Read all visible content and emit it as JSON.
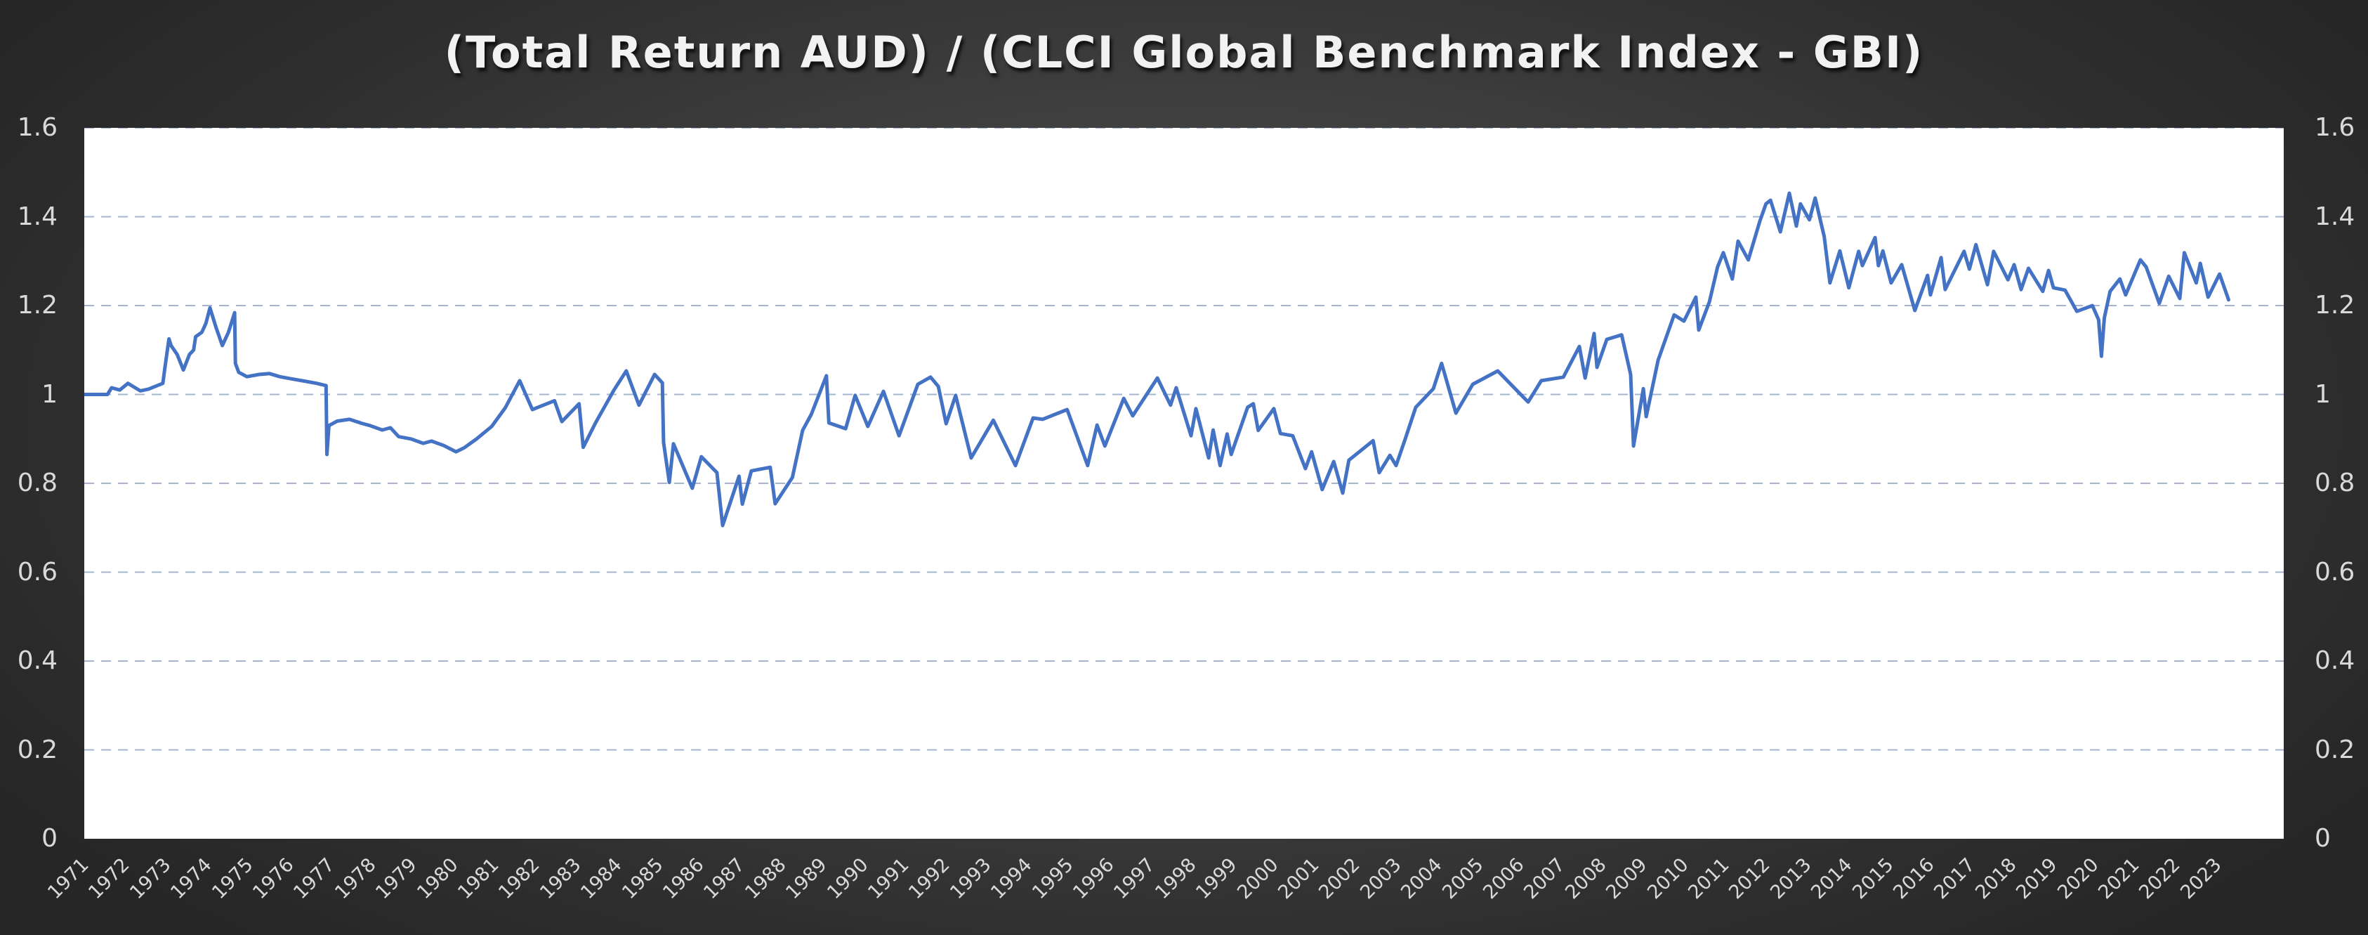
{
  "chart_data": {
    "type": "line",
    "title": "(Total Return AUD) / (CLCI Global Benchmark Index - GBI)",
    "xlabel": "",
    "ylabel": "",
    "ylim": [
      0,
      1.6
    ],
    "yticks": [
      "0",
      "0.2",
      "0.4",
      "0.6",
      "0.8",
      "1",
      "1.2",
      "1.4",
      "1.6"
    ],
    "y_axis_sides": [
      "left",
      "right"
    ],
    "x_range": [
      1971.0,
      2024.6
    ],
    "xticks": [
      "1971",
      "1972",
      "1973",
      "1974",
      "1975",
      "1976",
      "1977",
      "1978",
      "1979",
      "1980",
      "1981",
      "1982",
      "1983",
      "1984",
      "1985",
      "1986",
      "1987",
      "1988",
      "1989",
      "1990",
      "1991",
      "1992",
      "1993",
      "1994",
      "1995",
      "1996",
      "1997",
      "1998",
      "1999",
      "2000",
      "2001",
      "2002",
      "2003",
      "2004",
      "2005",
      "2006",
      "2007",
      "2008",
      "2009",
      "2010",
      "2011",
      "2012",
      "2013",
      "2014",
      "2015",
      "2016",
      "2017",
      "2018",
      "2019",
      "2020",
      "2021",
      "2022",
      "2023"
    ],
    "grid": true,
    "grid_style": "dashed horizontal",
    "legend": null,
    "series": [
      {
        "name": "(Total Return AUD) / (CLCI Global Benchmark Index - GBI)",
        "color": "#4472c4",
        "x": [
          1971.0,
          1971.6,
          1971.7,
          1971.9,
          1972.1,
          1972.4,
          1972.6,
          1972.95,
          1973.0,
          1973.1,
          1973.15,
          1973.3,
          1973.45,
          1973.6,
          1973.7,
          1973.75,
          1973.9,
          1974.0,
          1974.1,
          1974.25,
          1974.4,
          1974.55,
          1974.7,
          1974.72,
          1974.8,
          1975.0,
          1975.3,
          1975.55,
          1975.8,
          1976.1,
          1976.4,
          1976.7,
          1976.93,
          1976.95,
          1977.0,
          1977.2,
          1977.5,
          1977.8,
          1978.0,
          1978.3,
          1978.5,
          1978.7,
          1979.0,
          1979.3,
          1979.5,
          1979.8,
          1980.1,
          1980.3,
          1980.6,
          1980.97,
          1981.3,
          1981.65,
          1981.96,
          1982.5,
          1982.68,
          1983.1,
          1983.2,
          1983.5,
          1983.95,
          1984.25,
          1984.56,
          1984.94,
          1985.13,
          1985.16,
          1985.3,
          1985.4,
          1985.86,
          1986.08,
          1986.46,
          1986.6,
          1987.0,
          1987.08,
          1987.3,
          1987.76,
          1987.88,
          1988.3,
          1988.55,
          1988.76,
          1989.13,
          1989.19,
          1989.6,
          1989.83,
          1990.14,
          1990.52,
          1990.9,
          1991.36,
          1991.67,
          1991.86,
          1992.05,
          1992.28,
          1992.66,
          1993.2,
          1993.74,
          1994.17,
          1994.4,
          1995.0,
          1995.5,
          1995.73,
          1995.92,
          1996.38,
          1996.6,
          1997.2,
          1997.52,
          1997.66,
          1998.02,
          1998.14,
          1998.45,
          1998.56,
          1998.73,
          1998.9,
          1999.0,
          1999.4,
          1999.54,
          1999.66,
          2000.04,
          2000.2,
          2000.5,
          2000.81,
          2000.96,
          2001.22,
          2001.5,
          2001.72,
          2001.87,
          2002.46,
          2002.61,
          2002.87,
          2003.02,
          2003.23,
          2003.5,
          2003.93,
          2004.13,
          2004.48,
          2004.89,
          2005.5,
          2006.24,
          2006.56,
          2007.1,
          2007.49,
          2007.63,
          2007.85,
          2007.92,
          2008.16,
          2008.52,
          2008.74,
          2008.81,
          2009.05,
          2009.12,
          2009.41,
          2009.8,
          2010.04,
          2010.33,
          2010.4,
          2010.66,
          2010.86,
          2011.0,
          2011.22,
          2011.36,
          2011.61,
          2011.89,
          2012.04,
          2012.15,
          2012.39,
          2012.61,
          2012.78,
          2012.88,
          2013.1,
          2013.24,
          2013.46,
          2013.6,
          2013.84,
          2014.06,
          2014.3,
          2014.39,
          2014.7,
          2014.78,
          2014.89,
          2015.09,
          2015.35,
          2015.67,
          2015.98,
          2016.05,
          2016.31,
          2016.41,
          2016.87,
          2017.0,
          2017.16,
          2017.44,
          2017.59,
          2017.94,
          2018.09,
          2018.26,
          2018.44,
          2018.79,
          2018.93,
          2019.05,
          2019.33,
          2019.62,
          2020.0,
          2020.15,
          2020.22,
          2020.29,
          2020.43,
          2020.67,
          2020.81,
          2021.17,
          2021.31,
          2021.63,
          2021.86,
          2022.13,
          2022.24,
          2022.53,
          2022.63,
          2022.82,
          2023.1,
          2023.32
        ],
        "values": [
          1.0,
          1.0,
          1.015,
          1.01,
          1.025,
          1.008,
          1.012,
          1.025,
          1.06,
          1.125,
          1.11,
          1.09,
          1.055,
          1.09,
          1.1,
          1.13,
          1.14,
          1.16,
          1.195,
          1.15,
          1.11,
          1.14,
          1.184,
          1.07,
          1.05,
          1.04,
          1.045,
          1.047,
          1.04,
          1.035,
          1.03,
          1.025,
          1.02,
          0.865,
          0.93,
          0.94,
          0.944,
          0.935,
          0.93,
          0.92,
          0.925,
          0.905,
          0.9,
          0.89,
          0.895,
          0.885,
          0.871,
          0.88,
          0.9,
          0.928,
          0.97,
          1.031,
          0.966,
          0.986,
          0.939,
          0.979,
          0.881,
          0.936,
          1.01,
          1.053,
          0.976,
          1.045,
          1.026,
          0.892,
          0.802,
          0.889,
          0.789,
          0.86,
          0.824,
          0.705,
          0.816,
          0.753,
          0.828,
          0.836,
          0.754,
          0.813,
          0.919,
          0.955,
          1.042,
          0.936,
          0.923,
          0.998,
          0.928,
          1.007,
          0.907,
          1.023,
          1.039,
          1.018,
          0.934,
          0.998,
          0.857,
          0.942,
          0.84,
          0.947,
          0.944,
          0.966,
          0.84,
          0.931,
          0.884,
          0.991,
          0.952,
          1.037,
          0.976,
          1.015,
          0.907,
          0.968,
          0.857,
          0.92,
          0.84,
          0.911,
          0.865,
          0.971,
          0.979,
          0.919,
          0.968,
          0.912,
          0.907,
          0.833,
          0.871,
          0.786,
          0.849,
          0.778,
          0.852,
          0.896,
          0.824,
          0.863,
          0.84,
          0.896,
          0.971,
          1.013,
          1.07,
          0.958,
          1.023,
          1.053,
          0.983,
          1.031,
          1.039,
          1.108,
          1.037,
          1.137,
          1.061,
          1.124,
          1.134,
          1.045,
          0.884,
          1.013,
          0.95,
          1.077,
          1.179,
          1.165,
          1.219,
          1.145,
          1.208,
          1.287,
          1.319,
          1.26,
          1.345,
          1.303,
          1.39,
          1.429,
          1.437,
          1.366,
          1.453,
          1.379,
          1.429,
          1.393,
          1.442,
          1.355,
          1.251,
          1.323,
          1.24,
          1.322,
          1.29,
          1.353,
          1.29,
          1.323,
          1.251,
          1.292,
          1.189,
          1.268,
          1.224,
          1.308,
          1.236,
          1.322,
          1.282,
          1.337,
          1.247,
          1.322,
          1.258,
          1.292,
          1.236,
          1.284,
          1.232,
          1.279,
          1.24,
          1.235,
          1.187,
          1.2,
          1.168,
          1.086,
          1.172,
          1.232,
          1.26,
          1.224,
          1.303,
          1.287,
          1.205,
          1.266,
          1.216,
          1.319,
          1.251,
          1.295,
          1.219,
          1.271,
          1.213
        ]
      }
    ]
  },
  "colors": {
    "line": "#4472c4",
    "grid": "#a6b4cf",
    "plot_background": "#ffffff",
    "tick_label": "#d9d9d9",
    "title": "#f2f2f2"
  }
}
